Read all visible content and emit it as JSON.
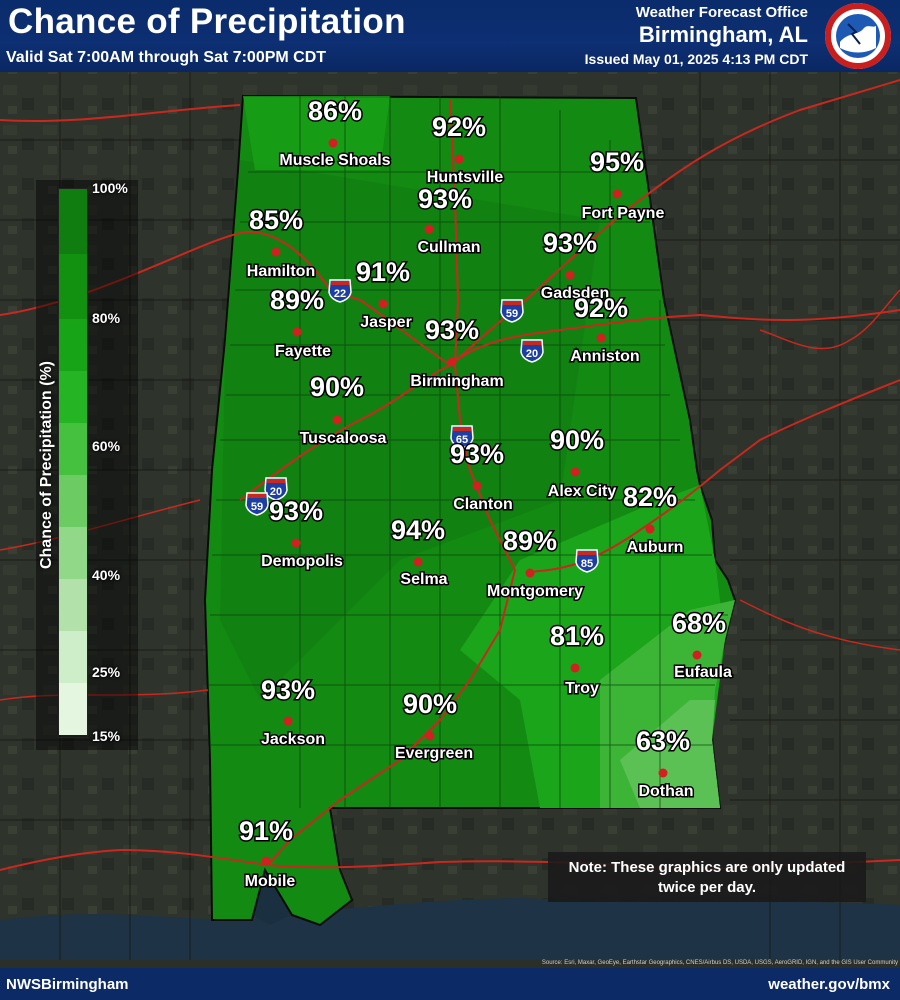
{
  "header": {
    "title": "Chance of Precipitation",
    "valid": "Valid Sat 7:00AM through Sat 7:00PM CDT",
    "office": "Weather Forecast Office",
    "city": "Birmingham, AL",
    "issued": "Issued May 01, 2025 4:13 PM CDT",
    "logo_text": "NATIONAL WEATHER SERVICE"
  },
  "legend": {
    "title": "Chance of Precipitation (%)",
    "ticks": [
      "100%",
      "80%",
      "60%",
      "40%",
      "25%",
      "15%"
    ],
    "colors": [
      "#0f7d10",
      "#12900f",
      "#18a417",
      "#24b424",
      "#46c13f",
      "#6ccb63",
      "#91d889",
      "#b2e2aa",
      "#cdeec8",
      "#e4f6e0"
    ]
  },
  "cities": [
    {
      "name": "Muscle Shoals",
      "pct": "86%"
    },
    {
      "name": "Huntsville",
      "pct": "92%"
    },
    {
      "name": "Fort Payne",
      "pct": "95%"
    },
    {
      "name": "Cullman",
      "pct": "93%"
    },
    {
      "name": "Hamilton",
      "pct": "85%"
    },
    {
      "name": "Gadsden",
      "pct": "93%"
    },
    {
      "name": "Jasper",
      "pct": "91%"
    },
    {
      "name": "Fayette",
      "pct": "89%"
    },
    {
      "name": "Anniston",
      "pct": "92%"
    },
    {
      "name": "Birmingham",
      "pct": "93%"
    },
    {
      "name": "Tuscaloosa",
      "pct": "90%"
    },
    {
      "name": "Clanton",
      "pct": "93%"
    },
    {
      "name": "Alex City",
      "pct": "90%"
    },
    {
      "name": "Demopolis",
      "pct": "93%"
    },
    {
      "name": "Selma",
      "pct": "94%"
    },
    {
      "name": "Auburn",
      "pct": "82%"
    },
    {
      "name": "Montgomery",
      "pct": "89%"
    },
    {
      "name": "Troy",
      "pct": "81%"
    },
    {
      "name": "Eufaula",
      "pct": "68%"
    },
    {
      "name": "Jackson",
      "pct": "93%"
    },
    {
      "name": "Evergreen",
      "pct": "90%"
    },
    {
      "name": "Dothan",
      "pct": "63%"
    },
    {
      "name": "Mobile",
      "pct": "91%"
    }
  ],
  "interstates": [
    "22",
    "59",
    "20",
    "65",
    "20",
    "59",
    "85"
  ],
  "note": "Note: These graphics are only updated twice per day.",
  "source": "Source: Esri, Maxar, GeoEye, Earthstar Geographics, CNES/Airbus DS, USDA, USGS, AeroGRID, IGN, and the GIS User Community",
  "footer": {
    "left": "NWSBirmingham",
    "right": "weather.gov/bmx"
  },
  "colors": {
    "header_bg": "#0a2c6b",
    "state_fill": "#138a12",
    "city_dot": "#d21f1f",
    "road": "#c8281e"
  }
}
